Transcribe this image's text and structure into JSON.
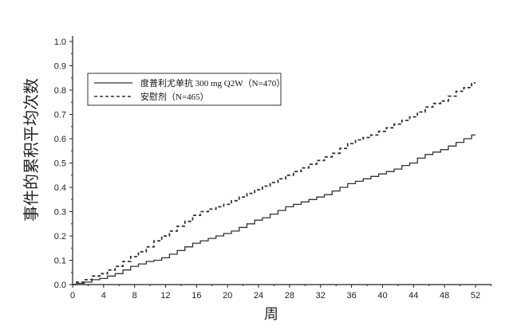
{
  "chart_data": {
    "type": "line",
    "title": "",
    "xlabel": "周",
    "ylabel": "事件的累积平均次数",
    "xlim": [
      0,
      54
    ],
    "ylim": [
      0,
      1.05
    ],
    "x_ticks": [
      0,
      4,
      8,
      12,
      16,
      20,
      24,
      28,
      32,
      36,
      40,
      44,
      48,
      52
    ],
    "y_ticks": [
      "0.0",
      "0.1",
      "0.2",
      "0.3",
      "0.4",
      "0.5",
      "0.6",
      "0.7",
      "0.8",
      "0.9",
      "1.0"
    ],
    "legend_position": "upper-left",
    "grid": false,
    "series": [
      {
        "name": "度普利尤单抗 300 mg Q2W（N=470）",
        "style": "solid",
        "color": "#333333",
        "x": [
          0,
          1,
          2,
          3,
          4,
          5,
          6,
          7,
          8,
          9,
          10,
          11,
          12,
          13,
          14,
          15,
          16,
          17,
          18,
          19,
          20,
          21,
          22,
          23,
          24,
          25,
          26,
          27,
          28,
          29,
          30,
          31,
          32,
          33,
          34,
          35,
          36,
          37,
          38,
          39,
          40,
          41,
          42,
          43,
          44,
          45,
          46,
          47,
          48,
          49,
          50,
          51,
          52
        ],
        "y": [
          0.0,
          0.005,
          0.01,
          0.02,
          0.025,
          0.035,
          0.045,
          0.06,
          0.075,
          0.085,
          0.095,
          0.1,
          0.11,
          0.125,
          0.14,
          0.155,
          0.17,
          0.18,
          0.19,
          0.2,
          0.21,
          0.22,
          0.235,
          0.25,
          0.265,
          0.275,
          0.29,
          0.305,
          0.32,
          0.33,
          0.34,
          0.35,
          0.36,
          0.37,
          0.385,
          0.4,
          0.415,
          0.425,
          0.435,
          0.445,
          0.455,
          0.465,
          0.475,
          0.49,
          0.5,
          0.52,
          0.535,
          0.545,
          0.555,
          0.57,
          0.585,
          0.6,
          0.615
        ]
      },
      {
        "name": "安慰剂（N=465）",
        "style": "dashed",
        "color": "#333333",
        "x": [
          0,
          1,
          2,
          3,
          4,
          5,
          6,
          7,
          8,
          9,
          10,
          11,
          12,
          13,
          14,
          15,
          16,
          17,
          18,
          19,
          20,
          21,
          22,
          23,
          24,
          25,
          26,
          27,
          28,
          29,
          30,
          31,
          32,
          33,
          34,
          35,
          36,
          37,
          38,
          39,
          40,
          41,
          42,
          43,
          44,
          45,
          46,
          47,
          48,
          49,
          50,
          51,
          52
        ],
        "y": [
          0.0,
          0.01,
          0.02,
          0.035,
          0.045,
          0.06,
          0.075,
          0.095,
          0.115,
          0.135,
          0.155,
          0.18,
          0.2,
          0.22,
          0.24,
          0.26,
          0.285,
          0.3,
          0.31,
          0.32,
          0.33,
          0.345,
          0.36,
          0.375,
          0.39,
          0.405,
          0.42,
          0.435,
          0.45,
          0.465,
          0.48,
          0.495,
          0.51,
          0.525,
          0.54,
          0.56,
          0.58,
          0.595,
          0.605,
          0.615,
          0.63,
          0.645,
          0.66,
          0.675,
          0.69,
          0.71,
          0.73,
          0.745,
          0.755,
          0.775,
          0.795,
          0.81,
          0.83
        ]
      }
    ]
  }
}
